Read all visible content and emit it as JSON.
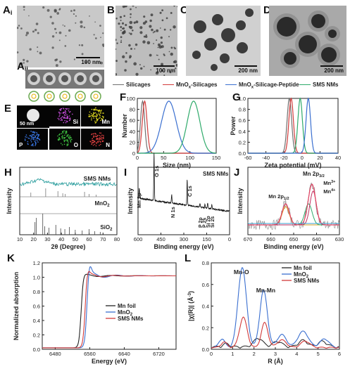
{
  "panels": {
    "Ai": {
      "letter": "A",
      "sub": "i",
      "scale": "100 nm"
    },
    "Aii": {
      "letter": "A",
      "sub": "ii"
    },
    "B": {
      "letter": "B",
      "scale": "100 nm"
    },
    "C": {
      "letter": "C",
      "scale": "200 nm"
    },
    "D": {
      "letter": "D",
      "scale": "200 nm"
    },
    "E": {
      "letter": "E",
      "scale": "50 nm",
      "elements": [
        "Si",
        "Mn",
        "P",
        "O",
        "N"
      ]
    },
    "F": {
      "letter": "F"
    },
    "G": {
      "letter": "G"
    },
    "H": {
      "letter": "H"
    },
    "I": {
      "letter": "I"
    },
    "J": {
      "letter": "J"
    },
    "K": {
      "letter": "K"
    },
    "L": {
      "letter": "L"
    }
  },
  "legend_top": [
    "Silicages",
    "MnOx-Silicages",
    "MnOx-Silicage-Peptide",
    "SMS NMs"
  ],
  "legend_colors": [
    "#707070",
    "#d23a3a",
    "#3a6fd0",
    "#2eaa6a"
  ],
  "chart_data": [
    {
      "id": "F",
      "type": "line",
      "xlabel": "Size (nm)",
      "ylabel": "Number",
      "xlim": [
        0,
        150
      ],
      "ylim": [
        0,
        100
      ],
      "xticks": [
        "0",
        "50",
        "100",
        "150"
      ],
      "yticks": [
        "0",
        "20",
        "40",
        "60",
        "80",
        "100"
      ],
      "series": [
        {
          "name": "Silicages",
          "center": 10,
          "width": 4,
          "peak": 95
        },
        {
          "name": "MnOx-Silicages",
          "center": 14,
          "width": 4.5,
          "peak": 95
        },
        {
          "name": "MnOx-Silicage-Peptide",
          "center": 60,
          "width": 14,
          "peak": 95
        },
        {
          "name": "SMS NMs",
          "center": 107,
          "width": 12,
          "peak": 95
        }
      ]
    },
    {
      "id": "G",
      "type": "line",
      "xlabel": "Zeta potential (mV)",
      "ylabel": "Power",
      "xlim": [
        -60,
        40
      ],
      "ylim": [
        0,
        1.0
      ],
      "xticks": [
        "-60",
        "-40",
        "-20",
        "0",
        "20",
        "40"
      ],
      "yticks": [
        "0.0",
        "0.2",
        "0.4",
        "0.6",
        "0.8",
        "1.0"
      ],
      "series": [
        {
          "name": "Silicages",
          "center": -14,
          "width": 2.5,
          "peak": 1.0
        },
        {
          "name": "MnOx-Silicages",
          "center": -12,
          "width": 2.5,
          "peak": 1.0
        },
        {
          "name": "SMS NMs",
          "center": -2,
          "width": 2.5,
          "peak": 1.0
        },
        {
          "name": "MnOx-Silicage-Peptide",
          "center": 7,
          "width": 2.5,
          "peak": 1.0
        }
      ]
    },
    {
      "id": "H",
      "type": "line",
      "xlabel": "2θ (Degree)",
      "ylabel": "Intensity",
      "xlim": [
        10,
        80
      ],
      "xticks": [
        "10",
        "20",
        "30",
        "40",
        "50",
        "60",
        "70",
        "80"
      ],
      "labels": [
        "SMS NMs",
        "MnO2",
        "SiO2"
      ]
    },
    {
      "id": "I",
      "type": "line",
      "xlabel": "Binding energy (eV)",
      "ylabel": "Intensity",
      "title": "SMS NMs",
      "xlim": [
        600,
        0
      ],
      "xticks": [
        "600",
        "450",
        "300",
        "150",
        "0"
      ],
      "peaks": [
        "Mn 2p",
        "O 1s",
        "N 1s",
        "C 1s",
        "P 2p",
        "P 2s",
        "Si 2p",
        "Si 2s"
      ]
    },
    {
      "id": "J",
      "type": "line",
      "xlabel": "Binding energy (eV)",
      "ylabel": "Intensity",
      "xlim": [
        670,
        630
      ],
      "xticks": [
        "670",
        "660",
        "650",
        "640",
        "630"
      ],
      "peaks": [
        "Mn 2p1/2",
        "Mn 2p3/2",
        "Mn3+",
        "Mn4+"
      ]
    },
    {
      "id": "K",
      "type": "line",
      "xlabel": "Energy (eV)",
      "ylabel": "Normalized absorption",
      "xlim": [
        6450,
        6760
      ],
      "ylim": [
        0,
        1.2
      ],
      "xticks": [
        "6480",
        "6560",
        "6640",
        "6720"
      ],
      "yticks": [
        "0.0",
        "0.2",
        "0.4",
        "0.6",
        "0.8",
        "1.0",
        "1.2"
      ],
      "series": [
        {
          "name": "Mn foil",
          "color": "#222222"
        },
        {
          "name": "MnO2",
          "color": "#3a6fd0"
        },
        {
          "name": "SMS NMs",
          "color": "#d23a3a"
        }
      ]
    },
    {
      "id": "L",
      "type": "line",
      "xlabel": "R (Å)",
      "ylabel": "|χ(R)| (Å-3)",
      "xlim": [
        0,
        6
      ],
      "ylim": [
        0,
        0.8
      ],
      "xticks": [
        "0",
        "1",
        "2",
        "3",
        "4",
        "5",
        "6"
      ],
      "yticks": [
        "0.0",
        "0.2",
        "0.4",
        "0.6",
        "0.8"
      ],
      "annotations": [
        "Mn-O",
        "Mn-Mn"
      ],
      "series": [
        {
          "name": "Mn foil",
          "color": "#222222"
        },
        {
          "name": "MnO2",
          "color": "#3a6fd0"
        },
        {
          "name": "SMS NMs",
          "color": "#d23a3a"
        }
      ]
    }
  ]
}
